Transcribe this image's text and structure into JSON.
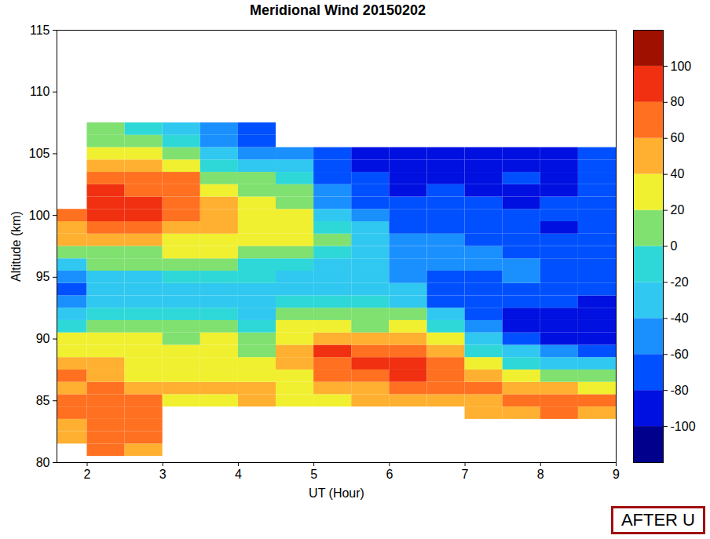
{
  "chart_data": {
    "type": "heatmap",
    "title": "Meridional Wind 20150202",
    "x_label": "UT (Hour)",
    "y_label": "Altitude (km)",
    "x": [
      1.75,
      2.25,
      2.75,
      3.25,
      3.75,
      4.25,
      4.75,
      5.25,
      5.75,
      6.25,
      6.75,
      7.25,
      7.75,
      8.25,
      8.75
    ],
    "y": [
      81,
      82,
      83,
      84,
      85,
      86,
      87,
      88,
      89,
      90,
      91,
      92,
      93,
      94,
      95,
      96,
      97,
      98,
      99,
      100,
      101,
      102,
      103,
      104,
      105,
      106,
      107
    ],
    "values": [
      [
        null,
        40,
        40,
        60,
        60,
        55,
        60,
        55,
        30,
        20,
        -10,
        -40,
        -60,
        -70,
        -60,
        -30,
        10,
        40,
        50,
        60,
        null,
        null,
        null,
        null,
        null,
        null,
        null
      ],
      [
        60,
        70,
        70,
        65,
        70,
        60,
        45,
        40,
        25,
        20,
        5,
        -10,
        -30,
        -40,
        -30,
        0,
        15,
        45,
        70,
        85,
        90,
        80,
        60,
        45,
        30,
        15,
        5
      ],
      [
        50,
        60,
        65,
        60,
        65,
        55,
        35,
        30,
        25,
        20,
        5,
        -5,
        -25,
        -35,
        -25,
        0,
        15,
        40,
        65,
        80,
        85,
        75,
        65,
        40,
        20,
        0,
        -10
      ],
      [
        null,
        null,
        null,
        null,
        35,
        40,
        30,
        25,
        25,
        15,
        0,
        -20,
        -30,
        -30,
        -10,
        5,
        25,
        35,
        55,
        65,
        70,
        70,
        60,
        30,
        10,
        -10,
        -30
      ],
      [
        null,
        null,
        null,
        null,
        30,
        40,
        30,
        25,
        20,
        20,
        5,
        -15,
        -30,
        -30,
        -15,
        5,
        25,
        35,
        45,
        50,
        45,
        35,
        10,
        -10,
        -40,
        -55,
        -60
      ],
      [
        null,
        null,
        null,
        null,
        40,
        45,
        30,
        25,
        15,
        5,
        -15,
        -30,
        -30,
        -30,
        -20,
        -5,
        10,
        25,
        30,
        35,
        30,
        15,
        0,
        -30,
        -55,
        -65,
        -70
      ],
      [
        null,
        null,
        null,
        null,
        30,
        25,
        35,
        50,
        50,
        30,
        20,
        0,
        -20,
        -35,
        -30,
        -10,
        5,
        20,
        25,
        25,
        10,
        0,
        -20,
        -40,
        -60,
        null,
        null
      ],
      [
        null,
        null,
        null,
        null,
        30,
        40,
        60,
        75,
        80,
        45,
        20,
        0,
        -15,
        -25,
        -30,
        -35,
        -15,
        0,
        -10,
        -25,
        -45,
        -60,
        -70,
        -75,
        -80,
        null,
        null
      ],
      [
        null,
        null,
        null,
        null,
        45,
        50,
        70,
        85,
        75,
        40,
        15,
        0,
        -20,
        -30,
        -35,
        -40,
        -40,
        -35,
        -35,
        -50,
        -70,
        -75,
        -80,
        -85,
        -90,
        null,
        null
      ],
      [
        null,
        null,
        null,
        null,
        50,
        60,
        80,
        85,
        70,
        40,
        20,
        0,
        -25,
        -40,
        -45,
        -50,
        -55,
        -55,
        -65,
        -75,
        -80,
        -85,
        -85,
        -90,
        -90,
        null,
        null
      ],
      [
        null,
        null,
        null,
        null,
        50,
        60,
        70,
        65,
        40,
        20,
        -10,
        -40,
        -65,
        -80,
        -75,
        -60,
        -55,
        -60,
        -65,
        -70,
        -75,
        -80,
        -85,
        -90,
        -95,
        null,
        null
      ],
      [
        null,
        null,
        null,
        45,
        55,
        60,
        45,
        20,
        -10,
        -40,
        -60,
        -70,
        -75,
        -70,
        -65,
        -60,
        -60,
        -65,
        -75,
        -80,
        -80,
        -85,
        -85,
        -90,
        -90,
        null,
        null
      ],
      [
        null,
        null,
        null,
        55,
        60,
        50,
        25,
        -5,
        -40,
        -70,
        -85,
        -85,
        -80,
        -70,
        -60,
        -60,
        -65,
        -70,
        -80,
        -80,
        -85,
        -85,
        -80,
        -85,
        -90,
        null,
        null
      ],
      [
        null,
        null,
        null,
        60,
        70,
        45,
        10,
        -30,
        -60,
        -85,
        -95,
        -90,
        -80,
        -75,
        -70,
        -75,
        -75,
        -80,
        -85,
        -80,
        -80,
        -85,
        -90,
        -85,
        -90,
        null,
        null
      ],
      [
        null,
        null,
        null,
        55,
        60,
        35,
        0,
        -35,
        -70,
        -90,
        -95,
        -95,
        -85,
        -80,
        -75,
        -70,
        -70,
        -75,
        -75,
        -75,
        -80,
        -75,
        -80,
        -80,
        -80,
        null,
        null
      ]
    ],
    "xlim": [
      1.6,
      9
    ],
    "xticks": [
      2,
      3,
      4,
      5,
      6,
      7,
      8,
      9
    ],
    "ylim": [
      80,
      115
    ],
    "yticks": [
      80,
      85,
      90,
      95,
      100,
      105,
      110,
      115
    ],
    "colorbar": {
      "range": [
        -120,
        120
      ],
      "ticks": [
        -100,
        -80,
        -60,
        -40,
        -20,
        0,
        20,
        40,
        60,
        80,
        100
      ]
    },
    "annotations": [
      "AFTER U"
    ]
  }
}
